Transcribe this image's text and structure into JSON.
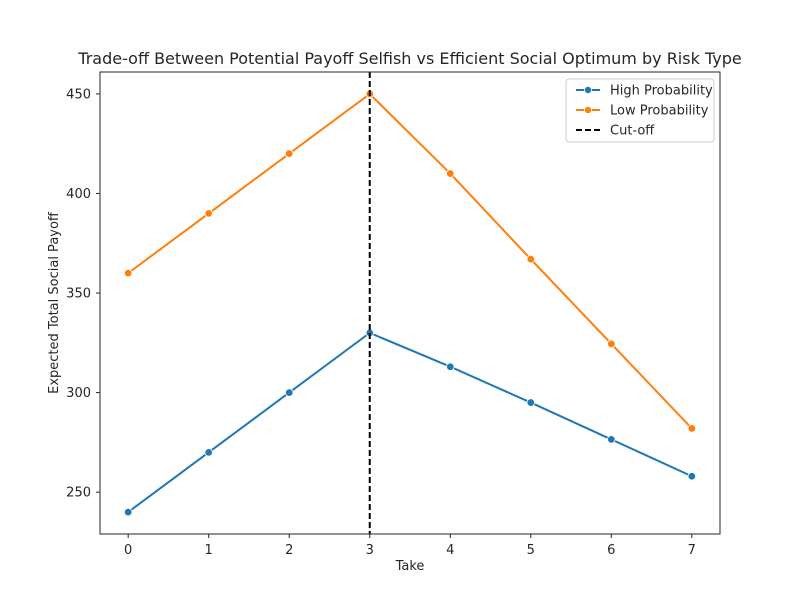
{
  "chart_data": {
    "type": "line",
    "title": "Trade-off Between Potential Payoff Selfish vs Efficient Social Optimum by Risk Type",
    "xlabel": "Take",
    "ylabel": "Expected Total Social Payoff",
    "x": [
      0,
      1,
      2,
      3,
      4,
      5,
      6,
      7
    ],
    "x_ticks": [
      "0",
      "1",
      "2",
      "3",
      "4",
      "5",
      "6",
      "7"
    ],
    "y_ticks": [
      "250",
      "300",
      "350",
      "400",
      "450"
    ],
    "xlim": [
      -0.35,
      7.35
    ],
    "ylim": [
      229,
      461
    ],
    "grid": false,
    "legend_position": "top-right",
    "series": [
      {
        "name": "High Probability",
        "color": "#1f77b4",
        "values": [
          240,
          270,
          300,
          330,
          313,
          295,
          276.5,
          258
        ]
      },
      {
        "name": "Low Probability",
        "color": "#ff7f0e",
        "values": [
          360,
          390,
          420,
          450,
          410,
          367,
          324.5,
          282
        ]
      }
    ],
    "annotations": [
      {
        "type": "vline",
        "x": 3,
        "label": "Cut-off",
        "color": "#000000",
        "style": "dashed"
      }
    ]
  }
}
